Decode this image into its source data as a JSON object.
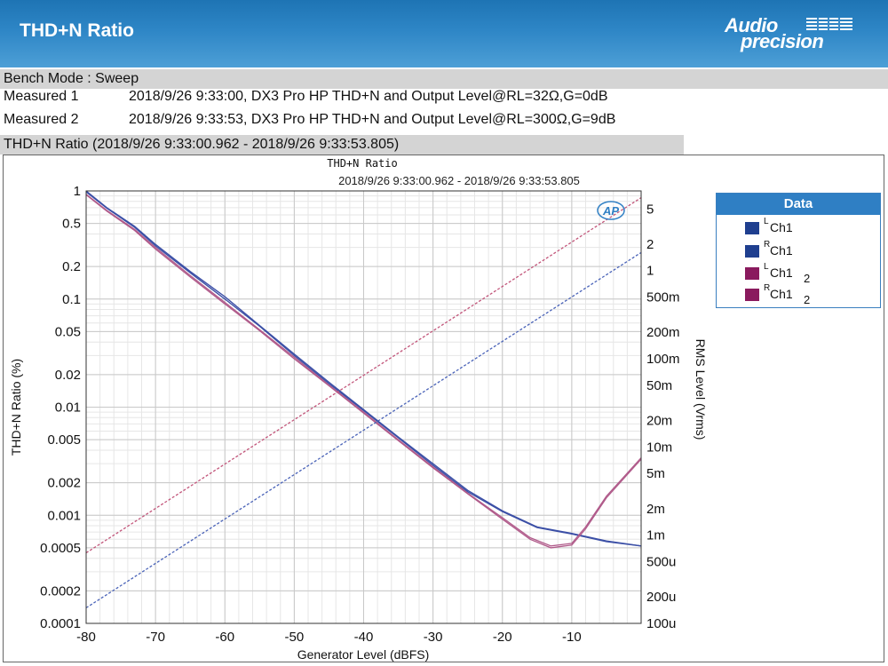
{
  "header": {
    "title": "THD+N Ratio",
    "logo_line1": "Audio",
    "logo_line2": "precision"
  },
  "bench_mode": "Bench Mode : Sweep",
  "measurements": [
    {
      "label": "Measured 1",
      "value": "2018/9/26 9:33:00, DX3 Pro HP THD+N and Output Level@RL=32Ω,G=0dB"
    },
    {
      "label": "Measured 2",
      "value": "2018/9/26 9:33:53, DX3 Pro HP THD+N and Output Level@RL=300Ω,G=9dB"
    }
  ],
  "graph_label": "THD+N Ratio (2018/9/26 9:33:00.962 - 2018/9/26 9:33:53.805)",
  "badge": "AP",
  "legend": {
    "title": "Data",
    "items": [
      {
        "prefix": "L",
        "name": "Ch1",
        "suffix": "",
        "color": "#1f3f8f"
      },
      {
        "prefix": "R",
        "name": "Ch1",
        "suffix": "",
        "color": "#1f3f8f"
      },
      {
        "prefix": "L",
        "name": "Ch1",
        "suffix": "2",
        "color": "#8a1a5e"
      },
      {
        "prefix": "R",
        "name": "Ch1",
        "suffix": "2",
        "color": "#8a1a5e"
      }
    ]
  },
  "chart_data": {
    "type": "line",
    "title": "THD+N Ratio",
    "subtitle": "2018/9/26 9:33:00.962 - 2018/9/26 9:33:53.805",
    "xlabel": "Generator Level (dBFS)",
    "ylabel": "THD+N Ratio (%)",
    "y2label": "RMS Level (Vrms)",
    "xlim": [
      -80,
      0
    ],
    "ylim": [
      0.0001,
      1
    ],
    "y_scale": "log",
    "y2lim": [
      0.0001,
      8
    ],
    "y2_scale": "log",
    "grid": true,
    "legend_position": "right",
    "x_ticks": [
      "-80",
      "-70",
      "-60",
      "-50",
      "-40",
      "-30",
      "-20",
      "-10"
    ],
    "x_tick_values": [
      -80,
      -70,
      -60,
      -50,
      -40,
      -30,
      -20,
      -10
    ],
    "y_ticks": [
      "1",
      "0.5",
      "0.2",
      "0.1",
      "0.05",
      "0.02",
      "0.01",
      "0.005",
      "0.002",
      "0.001",
      "0.0005",
      "0.0002",
      "0.0001"
    ],
    "y_tick_values": [
      1,
      0.5,
      0.2,
      0.1,
      0.05,
      0.02,
      0.01,
      0.005,
      0.002,
      0.001,
      0.0005,
      0.0002,
      0.0001
    ],
    "y2_ticks": [
      "5",
      "2",
      "1",
      "500m",
      "200m",
      "100m",
      "50m",
      "20m",
      "10m",
      "5m",
      "2m",
      "1m",
      "500u",
      "200u",
      "100u"
    ],
    "y2_tick_values": [
      5,
      2,
      1,
      0.5,
      0.2,
      0.1,
      0.05,
      0.02,
      0.01,
      0.005,
      0.002,
      0.001,
      0.0005,
      0.0002,
      0.0001
    ],
    "series": [
      {
        "axis": "left",
        "dash": false,
        "color": "#3b4fa6",
        "x": [
          -80,
          -77,
          -73,
          -70,
          -65,
          -60,
          -55,
          -50,
          -45,
          -40,
          -35,
          -30,
          -25,
          -20,
          -15,
          -10,
          -5,
          0
        ],
        "y": [
          1.0,
          0.7,
          0.47,
          0.32,
          0.18,
          0.105,
          0.057,
          0.031,
          0.017,
          0.0095,
          0.0053,
          0.003,
          0.0017,
          0.0011,
          0.00078,
          0.00068,
          0.00058,
          0.00052
        ]
      },
      {
        "axis": "left",
        "dash": false,
        "color": "#3b4fa6",
        "x": [
          -80,
          -77,
          -73,
          -70,
          -65,
          -60,
          -55,
          -50,
          -45,
          -40,
          -35,
          -30,
          -25,
          -20,
          -15,
          -10,
          -5,
          0
        ],
        "y": [
          0.98,
          0.69,
          0.46,
          0.31,
          0.175,
          0.1,
          0.056,
          0.03,
          0.0165,
          0.0093,
          0.0052,
          0.0029,
          0.00165,
          0.00108,
          0.00077,
          0.00067,
          0.00057,
          0.00052
        ]
      },
      {
        "axis": "left",
        "dash": false,
        "color": "#b05a8a",
        "x": [
          -80,
          -77,
          -73,
          -70,
          -65,
          -60,
          -55,
          -50,
          -45,
          -40,
          -35,
          -30,
          -25,
          -20,
          -16,
          -13,
          -10,
          -8,
          -5,
          0
        ],
        "y": [
          0.93,
          0.66,
          0.44,
          0.3,
          0.165,
          0.093,
          0.052,
          0.029,
          0.016,
          0.009,
          0.005,
          0.0028,
          0.0016,
          0.00095,
          0.00062,
          0.00052,
          0.00055,
          0.00078,
          0.0015,
          0.0034
        ]
      },
      {
        "axis": "left",
        "dash": false,
        "color": "#b05a8a",
        "x": [
          -80,
          -77,
          -73,
          -70,
          -65,
          -60,
          -55,
          -50,
          -45,
          -40,
          -35,
          -30,
          -25,
          -20,
          -16,
          -13,
          -10,
          -8,
          -5,
          0
        ],
        "y": [
          0.92,
          0.65,
          0.43,
          0.29,
          0.16,
          0.09,
          0.051,
          0.028,
          0.0158,
          0.0088,
          0.0049,
          0.00275,
          0.00158,
          0.00092,
          0.0006,
          0.0005,
          0.00053,
          0.00075,
          0.00145,
          0.0033
        ]
      },
      {
        "axis": "right",
        "dash": true,
        "color": "#4a63b8",
        "x": [
          -80,
          0
        ],
        "y": [
          0.00015,
          1.6
        ]
      },
      {
        "axis": "right",
        "dash": true,
        "color": "#c2557a",
        "x": [
          -80,
          0
        ],
        "y": [
          0.00063,
          6.7
        ]
      }
    ]
  }
}
